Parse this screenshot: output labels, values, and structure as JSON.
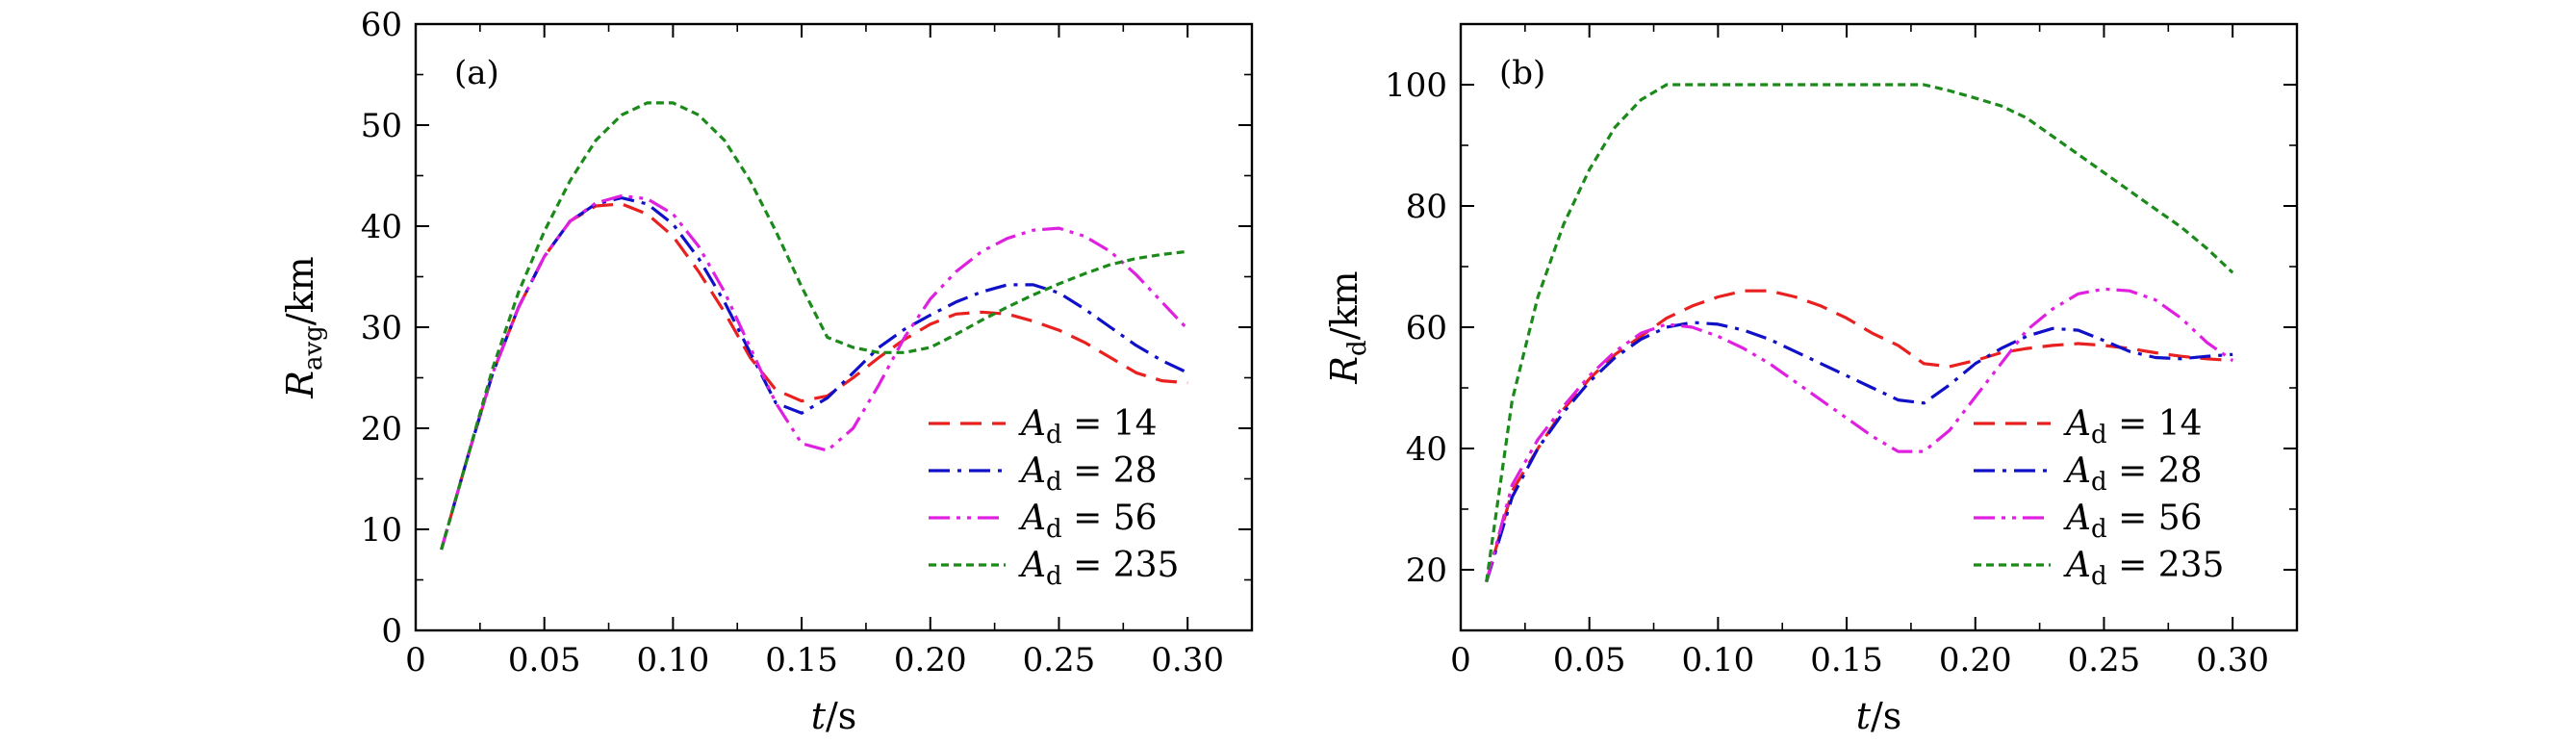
{
  "chart_data": [
    {
      "type": "line",
      "panel_label": "(a)",
      "xlabel": {
        "var": "t",
        "unit": "/s"
      },
      "ylabel": {
        "var": "R",
        "sub": "avg",
        "unit": "/km"
      },
      "xlim": [
        0,
        0.325
      ],
      "ylim": [
        0,
        60
      ],
      "xticks": [
        0,
        0.05,
        0.1,
        0.15,
        0.2,
        0.25,
        0.3
      ],
      "xtick_labels": [
        "0",
        "0.05",
        "0.10",
        "0.15",
        "0.20",
        "0.25",
        "0.30"
      ],
      "yticks": [
        0,
        10,
        20,
        30,
        40,
        50,
        60
      ],
      "ytick_labels": [
        "0",
        "10",
        "20",
        "30",
        "40",
        "50",
        "60"
      ],
      "grid": false,
      "legend_position": "lower-right",
      "series": [
        {
          "name": "A_d = 14",
          "label_var": "A",
          "label_sub": "d",
          "label_value": "= 14",
          "color": "#e8201f",
          "dash": "22,11",
          "x": [
            0.01,
            0.02,
            0.03,
            0.04,
            0.05,
            0.06,
            0.07,
            0.08,
            0.09,
            0.1,
            0.11,
            0.12,
            0.13,
            0.14,
            0.15,
            0.16,
            0.17,
            0.18,
            0.19,
            0.2,
            0.21,
            0.22,
            0.23,
            0.24,
            0.25,
            0.26,
            0.27,
            0.28,
            0.29,
            0.3
          ],
          "y": [
            8.0,
            17.0,
            25.5,
            32.0,
            37.0,
            40.5,
            42.0,
            42.2,
            41.2,
            39.0,
            35.5,
            31.5,
            27.0,
            23.8,
            22.7,
            23.2,
            25.0,
            27.0,
            28.8,
            30.3,
            31.3,
            31.5,
            31.3,
            30.6,
            29.7,
            28.5,
            27.0,
            25.5,
            24.7,
            24.5
          ]
        },
        {
          "name": "A_d = 28",
          "label_var": "A",
          "label_sub": "d",
          "label_value": "= 28",
          "color": "#1010c8",
          "dash": "22,8,4,8",
          "x": [
            0.01,
            0.02,
            0.03,
            0.04,
            0.05,
            0.06,
            0.07,
            0.08,
            0.09,
            0.1,
            0.11,
            0.12,
            0.13,
            0.14,
            0.15,
            0.16,
            0.17,
            0.18,
            0.19,
            0.2,
            0.21,
            0.22,
            0.23,
            0.24,
            0.25,
            0.26,
            0.27,
            0.28,
            0.29,
            0.3
          ],
          "y": [
            8.0,
            17.0,
            25.5,
            32.0,
            37.0,
            40.5,
            42.2,
            42.8,
            42.2,
            40.2,
            36.8,
            32.5,
            27.5,
            22.5,
            21.5,
            23.0,
            25.5,
            28.0,
            29.8,
            31.2,
            32.5,
            33.5,
            34.2,
            34.2,
            33.4,
            31.8,
            30.0,
            28.2,
            26.7,
            25.5
          ]
        },
        {
          "name": "A_d = 56",
          "label_var": "A",
          "label_sub": "d",
          "label_value": "= 56",
          "color": "#e020e0",
          "dash": "22,7,4,7,4,7",
          "x": [
            0.01,
            0.02,
            0.03,
            0.04,
            0.05,
            0.06,
            0.07,
            0.08,
            0.09,
            0.1,
            0.11,
            0.12,
            0.13,
            0.14,
            0.15,
            0.16,
            0.17,
            0.18,
            0.19,
            0.2,
            0.21,
            0.22,
            0.23,
            0.24,
            0.25,
            0.26,
            0.27,
            0.28,
            0.29,
            0.3
          ],
          "y": [
            8.0,
            17.0,
            25.5,
            32.0,
            37.0,
            40.5,
            42.3,
            43.0,
            42.7,
            41.2,
            38.0,
            33.5,
            28.0,
            22.5,
            18.5,
            17.8,
            20.0,
            24.3,
            29.0,
            32.8,
            35.5,
            37.5,
            38.8,
            39.6,
            39.8,
            39.0,
            37.5,
            35.2,
            32.5,
            29.8
          ]
        },
        {
          "name": "A_d = 235",
          "label_var": "A",
          "label_sub": "d",
          "label_value": "= 235",
          "color": "#1b8a1b",
          "dash": "8,5",
          "x": [
            0.01,
            0.02,
            0.03,
            0.04,
            0.05,
            0.06,
            0.07,
            0.08,
            0.09,
            0.1,
            0.11,
            0.12,
            0.13,
            0.14,
            0.15,
            0.16,
            0.17,
            0.18,
            0.19,
            0.2,
            0.21,
            0.22,
            0.23,
            0.24,
            0.25,
            0.26,
            0.27,
            0.28,
            0.29,
            0.3
          ],
          "y": [
            8.0,
            17.0,
            26.0,
            33.5,
            39.5,
            44.5,
            48.5,
            51.0,
            52.2,
            52.2,
            51.0,
            48.5,
            44.5,
            39.5,
            34.0,
            29.0,
            28.0,
            27.5,
            27.5,
            28.0,
            29.3,
            30.7,
            32.0,
            33.2,
            34.3,
            35.3,
            36.2,
            36.8,
            37.2,
            37.5
          ]
        }
      ]
    },
    {
      "type": "line",
      "panel_label": "(b)",
      "xlabel": {
        "var": "t",
        "unit": "/s"
      },
      "ylabel": {
        "var": "R",
        "sub": "d",
        "unit": "/km"
      },
      "xlim": [
        0,
        0.325
      ],
      "ylim": [
        10,
        110
      ],
      "xticks": [
        0,
        0.05,
        0.1,
        0.15,
        0.2,
        0.25,
        0.3
      ],
      "xtick_labels": [
        "0",
        "0.05",
        "0.10",
        "0.15",
        "0.20",
        "0.25",
        "0.30"
      ],
      "yticks": [
        20,
        40,
        60,
        80,
        100
      ],
      "ytick_labels": [
        "20",
        "40",
        "60",
        "80",
        "100"
      ],
      "grid": false,
      "legend_position": "lower-right",
      "series": [
        {
          "name": "A_d = 14",
          "label_var": "A",
          "label_sub": "d",
          "label_value": "= 14",
          "color": "#e8201f",
          "dash": "22,11",
          "x": [
            0.01,
            0.02,
            0.03,
            0.04,
            0.05,
            0.06,
            0.07,
            0.08,
            0.09,
            0.1,
            0.11,
            0.12,
            0.13,
            0.14,
            0.15,
            0.16,
            0.17,
            0.18,
            0.19,
            0.2,
            0.21,
            0.22,
            0.23,
            0.24,
            0.25,
            0.26,
            0.27,
            0.28,
            0.29,
            0.3
          ],
          "y": [
            18.0,
            33.0,
            40.0,
            46.5,
            51.5,
            55.5,
            58.5,
            61.5,
            63.5,
            65.0,
            66.0,
            66.0,
            65.0,
            63.5,
            61.5,
            59.0,
            57.0,
            54.0,
            53.5,
            54.5,
            55.8,
            56.5,
            57.0,
            57.3,
            57.0,
            56.5,
            55.8,
            55.2,
            54.8,
            54.5
          ]
        },
        {
          "name": "A_d = 28",
          "label_var": "A",
          "label_sub": "d",
          "label_value": "= 28",
          "color": "#1010c8",
          "dash": "22,8,4,8",
          "x": [
            0.01,
            0.02,
            0.03,
            0.04,
            0.05,
            0.06,
            0.07,
            0.08,
            0.09,
            0.1,
            0.11,
            0.12,
            0.13,
            0.14,
            0.15,
            0.16,
            0.17,
            0.18,
            0.19,
            0.2,
            0.21,
            0.22,
            0.23,
            0.24,
            0.25,
            0.26,
            0.27,
            0.28,
            0.29,
            0.3
          ],
          "y": [
            18.0,
            32.0,
            40.0,
            46.0,
            51.0,
            55.0,
            58.0,
            60.0,
            60.8,
            60.5,
            59.5,
            58.0,
            56.0,
            54.0,
            52.0,
            50.0,
            48.0,
            47.5,
            50.5,
            54.0,
            56.5,
            58.5,
            59.8,
            59.5,
            57.8,
            56.0,
            55.0,
            54.8,
            55.2,
            55.5
          ]
        },
        {
          "name": "A_d = 56",
          "label_var": "A",
          "label_sub": "d",
          "label_value": "= 56",
          "color": "#e020e0",
          "dash": "22,7,4,7,4,7",
          "x": [
            0.01,
            0.02,
            0.03,
            0.04,
            0.05,
            0.06,
            0.07,
            0.08,
            0.09,
            0.1,
            0.11,
            0.12,
            0.13,
            0.14,
            0.15,
            0.16,
            0.17,
            0.18,
            0.19,
            0.2,
            0.21,
            0.22,
            0.23,
            0.24,
            0.25,
            0.26,
            0.27,
            0.28,
            0.29,
            0.3
          ],
          "y": [
            18.0,
            34.0,
            41.5,
            47.0,
            52.0,
            56.0,
            59.0,
            60.5,
            60.0,
            58.5,
            56.5,
            54.0,
            51.0,
            48.0,
            45.0,
            42.0,
            39.5,
            39.5,
            43.0,
            48.5,
            54.0,
            59.5,
            63.0,
            65.5,
            66.3,
            66.0,
            64.5,
            61.5,
            57.5,
            54.5
          ]
        },
        {
          "name": "A_d = 235",
          "label_var": "A",
          "label_sub": "d",
          "label_value": "= 235",
          "color": "#1b8a1b",
          "dash": "8,5",
          "x": [
            0.01,
            0.02,
            0.03,
            0.04,
            0.05,
            0.06,
            0.07,
            0.08,
            0.09,
            0.1,
            0.11,
            0.12,
            0.13,
            0.14,
            0.15,
            0.16,
            0.17,
            0.18,
            0.19,
            0.2,
            0.21,
            0.22,
            0.23,
            0.24,
            0.25,
            0.26,
            0.27,
            0.28,
            0.29,
            0.3
          ],
          "y": [
            18.0,
            48.0,
            65.0,
            77.0,
            86.0,
            93.0,
            97.5,
            100.0,
            100.0,
            100.0,
            100.0,
            100.0,
            100.0,
            100.0,
            100.0,
            100.0,
            100.0,
            100.0,
            99.0,
            97.8,
            96.5,
            94.5,
            91.5,
            88.5,
            85.5,
            82.5,
            79.5,
            76.5,
            73.0,
            69.0
          ]
        }
      ]
    }
  ]
}
